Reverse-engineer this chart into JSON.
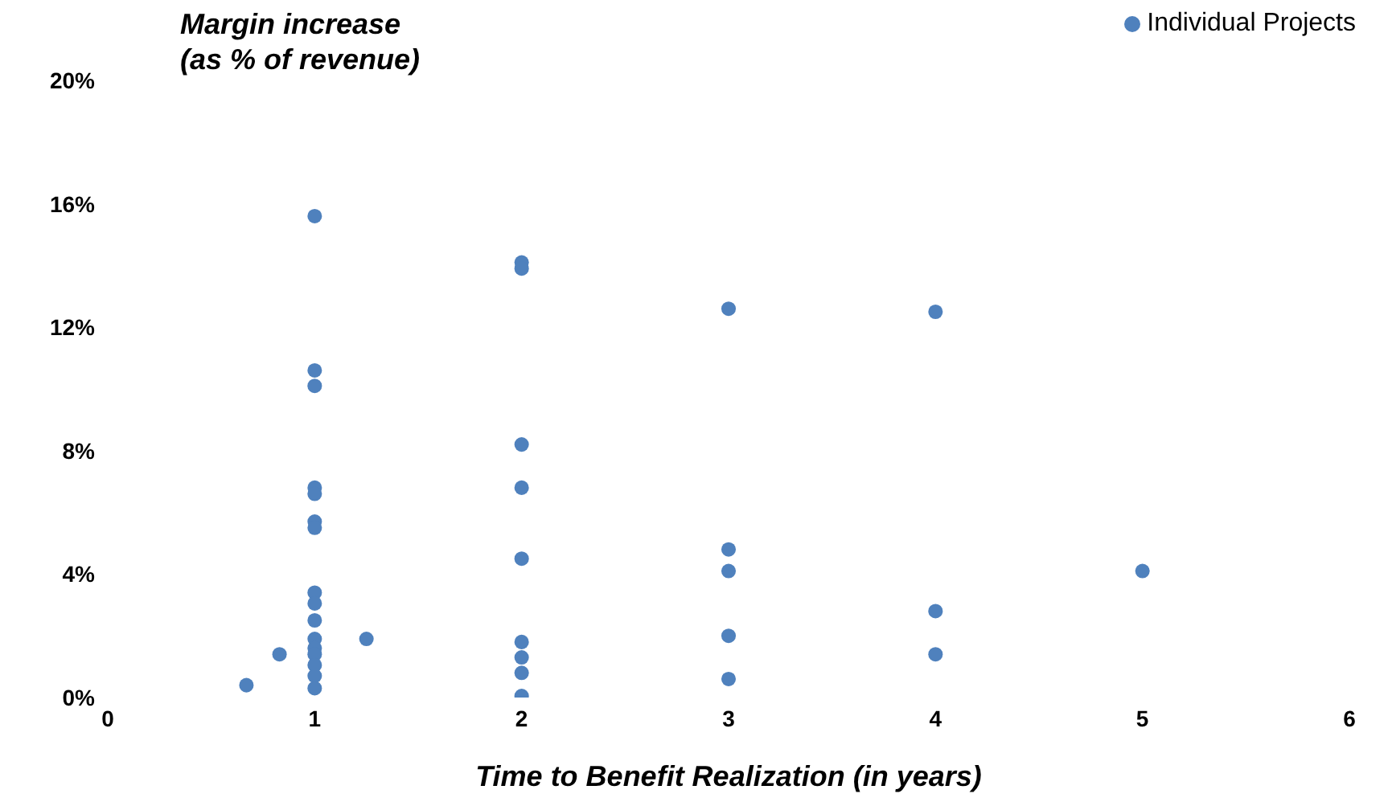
{
  "chart_data": {
    "type": "scatter",
    "xlabel": "Time to Benefit Realization (in years)",
    "ylabel": "Margin increase\n(as % of revenue)",
    "xlim": [
      0,
      6
    ],
    "xticks": [
      0,
      1,
      2,
      3,
      4,
      5,
      6
    ],
    "ylim": [
      0,
      20
    ],
    "yticks": [
      {
        "value": 0,
        "label": "0%"
      },
      {
        "value": 4,
        "label": "4%"
      },
      {
        "value": 8,
        "label": "8%"
      },
      {
        "value": 12,
        "label": "12%"
      },
      {
        "value": 16,
        "label": "16%"
      },
      {
        "value": 20,
        "label": "20%"
      }
    ],
    "grid": false,
    "legend": "top right",
    "marker": "circle",
    "series": [
      {
        "name": "Individual Projects",
        "color": "#4f81bd",
        "x": [
          1,
          1,
          1,
          1,
          1,
          1,
          1,
          1,
          1,
          1,
          1,
          1,
          1,
          1,
          1,
          1,
          0.67,
          0.83,
          1.25,
          2,
          2,
          2,
          2,
          2,
          2,
          2,
          2,
          2,
          3,
          3,
          3,
          3,
          3,
          4,
          4,
          4,
          5
        ],
        "values": [
          15.6,
          10.6,
          10.1,
          6.8,
          6.6,
          5.7,
          5.5,
          3.4,
          3.05,
          2.5,
          1.9,
          1.6,
          1.4,
          1.05,
          0.7,
          0.3,
          0.4,
          1.4,
          1.9,
          14.1,
          13.9,
          8.2,
          6.8,
          4.5,
          1.8,
          1.3,
          0.8,
          0.05,
          12.6,
          4.8,
          4.1,
          2.0,
          0.6,
          12.5,
          2.8,
          1.4,
          4.1
        ]
      }
    ]
  }
}
